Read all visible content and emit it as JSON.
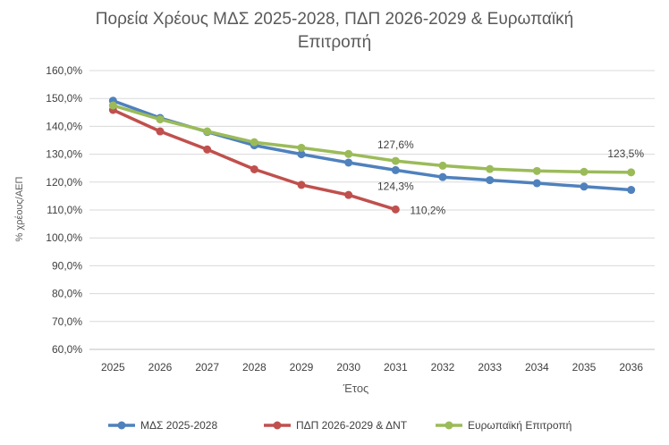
{
  "chart_data": {
    "type": "line",
    "title_lines": [
      "Πορεία Χρέους ΜΔΣ 2025-2028, ΠΔΠ 2026-2029 & Ευρωπαϊκή",
      "Επιτροπή"
    ],
    "xlabel": "Έτος",
    "ylabel": "% χρέους/ΑΕΠ",
    "x": [
      "2025",
      "2026",
      "2027",
      "2028",
      "2029",
      "2030",
      "2031",
      "2032",
      "2033",
      "2034",
      "2035",
      "2036"
    ],
    "ylim": [
      60,
      160
    ],
    "yticks": [
      "60,0%",
      "70,0%",
      "80,0%",
      "90,0%",
      "100,0%",
      "110,0%",
      "120,0%",
      "130,0%",
      "140,0%",
      "150,0%",
      "160,0%"
    ],
    "grid": true,
    "legend": "bottom",
    "series": [
      {
        "name": "ΜΔΣ 2025-2028",
        "color": "#4F81BD",
        "values": [
          149.2,
          143.0,
          138.0,
          133.2,
          130.0,
          127.0,
          124.3,
          121.8,
          120.7,
          119.6,
          118.4,
          117.2
        ]
      },
      {
        "name": "ΠΔΠ 2026-2029 & ΔΝΤ",
        "color": "#C0504D",
        "values": [
          145.9,
          138.2,
          131.7,
          124.6,
          119.0,
          115.4,
          110.2,
          null,
          null,
          null,
          null,
          null
        ]
      },
      {
        "name": "Ευρωπαϊκή Επιτροπή",
        "color": "#9BBB59",
        "values": [
          147.5,
          142.5,
          138.2,
          134.3,
          132.3,
          130.1,
          127.6,
          125.9,
          124.7,
          124.0,
          123.7,
          123.5
        ]
      }
    ],
    "annotations": [
      {
        "series": 2,
        "index": 6,
        "text": "127,6%"
      },
      {
        "series": 0,
        "index": 6,
        "text": "124,3%"
      },
      {
        "series": 1,
        "index": 6,
        "text": "110,2%"
      },
      {
        "series": 2,
        "index": 11,
        "text": "123,5%"
      }
    ]
  }
}
